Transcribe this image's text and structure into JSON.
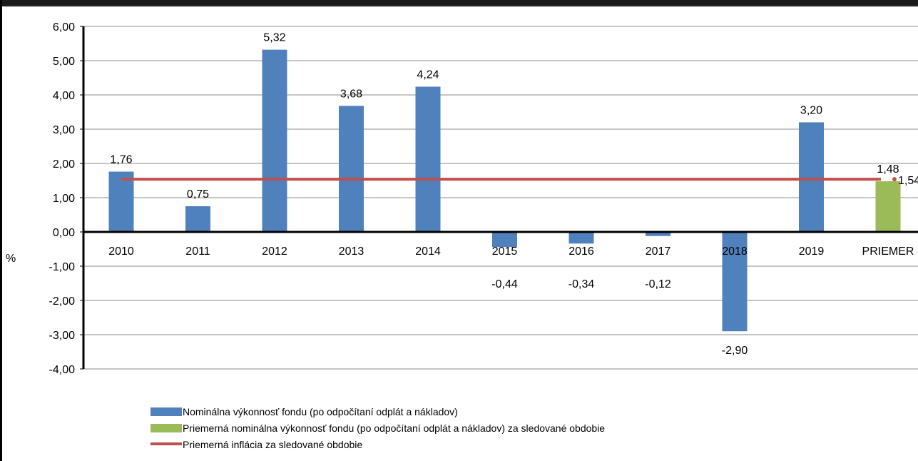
{
  "chart_data": {
    "type": "bar",
    "categories": [
      "2010",
      "2011",
      "2012",
      "2013",
      "2014",
      "2015",
      "2016",
      "2017",
      "2018",
      "2019",
      "PRIEMER"
    ],
    "series": [
      {
        "name": "Nominálna výkonnosť fondu (po odpočítaní odplát a nákladov)",
        "color": "#4F81BD",
        "values": [
          1.76,
          0.75,
          5.32,
          3.68,
          4.24,
          -0.44,
          -0.34,
          -0.12,
          -2.9,
          3.2,
          null
        ],
        "labels": [
          "1,76",
          "0,75",
          "5,32",
          "3,68",
          "4,24",
          "-0,44",
          "-0,34",
          "-0,12",
          "-2,90",
          "3,20",
          ""
        ]
      },
      {
        "name": "Priemerná nominálna výkonnosť fondu (po odpočítaní odplát a nákladov) za sledované obdobie",
        "color": "#9BBB59",
        "values": [
          null,
          null,
          null,
          null,
          null,
          null,
          null,
          null,
          null,
          null,
          1.48
        ],
        "labels": [
          "",
          "",
          "",
          "",
          "",
          "",
          "",
          "",
          "",
          "",
          "1,48"
        ]
      },
      {
        "name": "Priemerná inflácia za sledované obdobie",
        "type": "line",
        "color": "#C0504D",
        "value": 1.54,
        "label": "1,54"
      }
    ],
    "ylabel": "%",
    "ylim": [
      -4,
      6
    ],
    "yticks": [
      6,
      5,
      4,
      3,
      2,
      1,
      0,
      -1,
      -2,
      -3,
      -4
    ],
    "ytick_labels": [
      "6,00",
      "5,00",
      "4,00",
      "3,00",
      "2,00",
      "1,00",
      "0,00",
      "-1,00",
      "-2,00",
      "-3,00",
      "-4,00"
    ],
    "grid": true,
    "legend_position": "bottom"
  }
}
